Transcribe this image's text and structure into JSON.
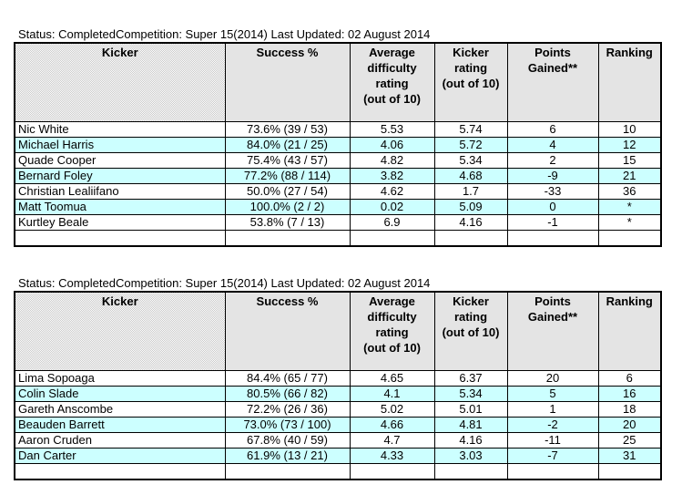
{
  "colors": {
    "row_highlight": "#CCFFFF",
    "header_fill_gray": "#C8C8C8",
    "border": "#000000",
    "background": "#FFFFFF",
    "text": "#000000"
  },
  "tables": [
    {
      "status_line": "Status: CompletedCompetition: Super 15(2014) Last Updated: 02 August 2014",
      "columns": [
        {
          "id": "kicker",
          "label": "Kicker"
        },
        {
          "id": "success-pct",
          "label": "Success %"
        },
        {
          "id": "avg-difficulty-rating",
          "label": "Average\ndifficulty\nrating\n(out of 10)"
        },
        {
          "id": "kicker-rating",
          "label": "Kicker\nrating\n(out of 10)"
        },
        {
          "id": "points-gained",
          "label": "Points\nGained**"
        },
        {
          "id": "ranking",
          "label": "Ranking"
        }
      ],
      "rows": [
        [
          "Nic White",
          "73.6% (39 / 53)",
          "5.53",
          "5.74",
          "6",
          "10"
        ],
        [
          "Michael Harris",
          "84.0% (21 / 25)",
          "4.06",
          "5.72",
          "4",
          "12"
        ],
        [
          "Quade Cooper",
          "75.4% (43 / 57)",
          "4.82",
          "5.34",
          "2",
          "15"
        ],
        [
          "Bernard Foley",
          "77.2% (88 / 114)",
          "3.82",
          "4.68",
          "-9",
          "21"
        ],
        [
          "Christian Lealiifano",
          "50.0% (27 / 54)",
          "4.62",
          "1.7",
          "-33",
          "36"
        ],
        [
          "Matt Toomua",
          "100.0% (2 / 2)",
          "0.02",
          "5.09",
          "0",
          "*"
        ],
        [
          "Kurtley Beale",
          "53.8% (7 / 13)",
          "6.9",
          "4.16",
          "-1",
          "*"
        ],
        [
          "",
          "",
          "",
          "",
          "",
          ""
        ]
      ]
    },
    {
      "status_line": "Status: CompletedCompetition: Super 15(2014) Last Updated: 02 August 2014",
      "columns": [
        {
          "id": "kicker",
          "label": "Kicker"
        },
        {
          "id": "success-pct",
          "label": "Success %"
        },
        {
          "id": "avg-difficulty-rating",
          "label": "Average\ndifficulty\nrating\n(out of 10)"
        },
        {
          "id": "kicker-rating",
          "label": "Kicker\nrating\n(out of 10)"
        },
        {
          "id": "points-gained",
          "label": "Points\nGained**"
        },
        {
          "id": "ranking",
          "label": "Ranking"
        }
      ],
      "rows": [
        [
          "Lima Sopoaga",
          "84.4% (65 / 77)",
          "4.65",
          "6.37",
          "20",
          "6"
        ],
        [
          "Colin Slade",
          "80.5% (66 / 82)",
          "4.1",
          "5.34",
          "5",
          "16"
        ],
        [
          "Gareth Anscombe",
          "72.2% (26 / 36)",
          "5.02",
          "5.01",
          "1",
          "18"
        ],
        [
          "Beauden Barrett",
          "73.0% (73 / 100)",
          "4.66",
          "4.81",
          "-2",
          "20"
        ],
        [
          "Aaron Cruden",
          "67.8% (40 / 59)",
          "4.7",
          "4.16",
          "-11",
          "25"
        ],
        [
          "Dan Carter",
          "61.9% (13 / 21)",
          "4.33",
          "3.03",
          "-7",
          "31"
        ],
        [
          "",
          "",
          "",
          "",
          "",
          ""
        ]
      ]
    }
  ]
}
